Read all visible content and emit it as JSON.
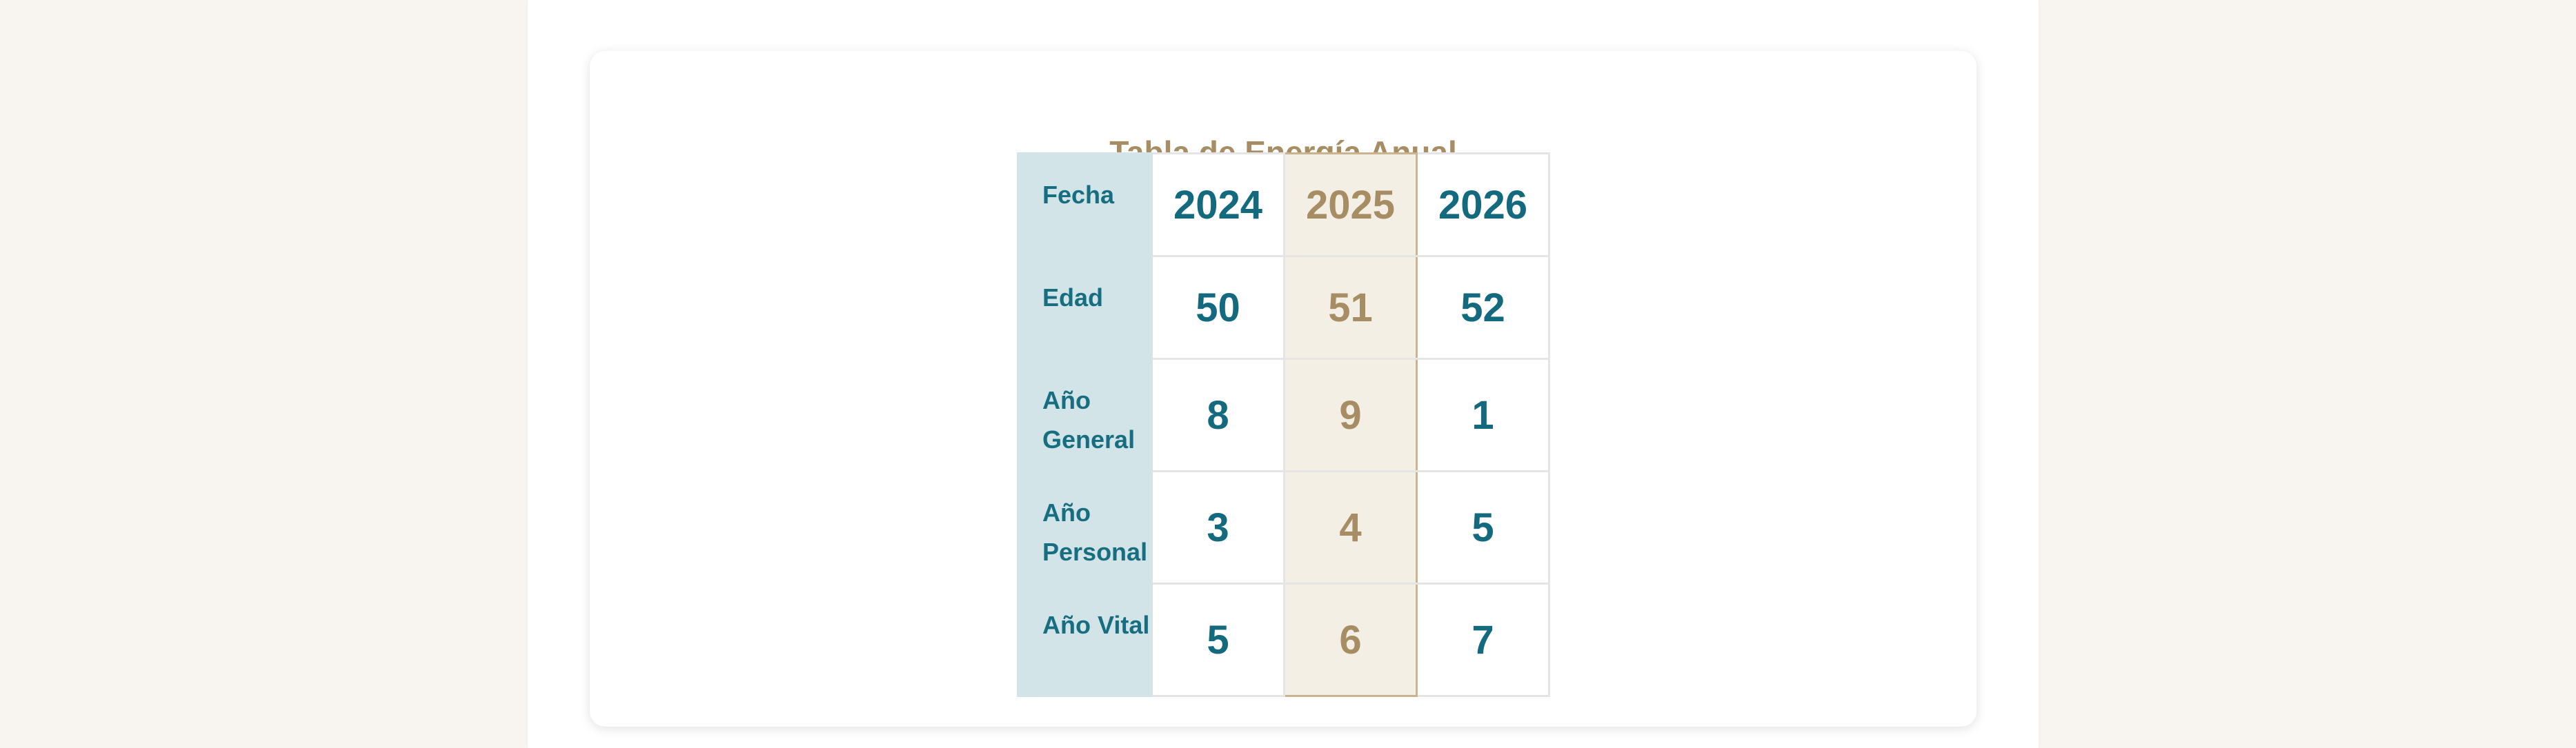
{
  "card": {
    "title": "Tabla de Energía Anual"
  },
  "table": {
    "rows": [
      {
        "label": "Fecha",
        "values": [
          "2024",
          "2025",
          "2026"
        ]
      },
      {
        "label": "Edad",
        "values": [
          "50",
          "51",
          "52"
        ]
      },
      {
        "label": "Año General",
        "values": [
          "8",
          "9",
          "1"
        ]
      },
      {
        "label": "Año Personal",
        "values": [
          "3",
          "4",
          "5"
        ]
      },
      {
        "label": "Año Vital",
        "values": [
          "5",
          "6",
          "7"
        ]
      }
    ],
    "highlighted_column": "2025"
  },
  "colors": {
    "page_background": "#f8f5f0",
    "title_accent": "#a68d63",
    "label_background": "#d3e4e8",
    "label_text": "#166e80",
    "value_text": "#13697d",
    "highlight_background": "#f4efe4",
    "highlight_text": "#a68d63",
    "highlight_border": "#c9b48f"
  }
}
